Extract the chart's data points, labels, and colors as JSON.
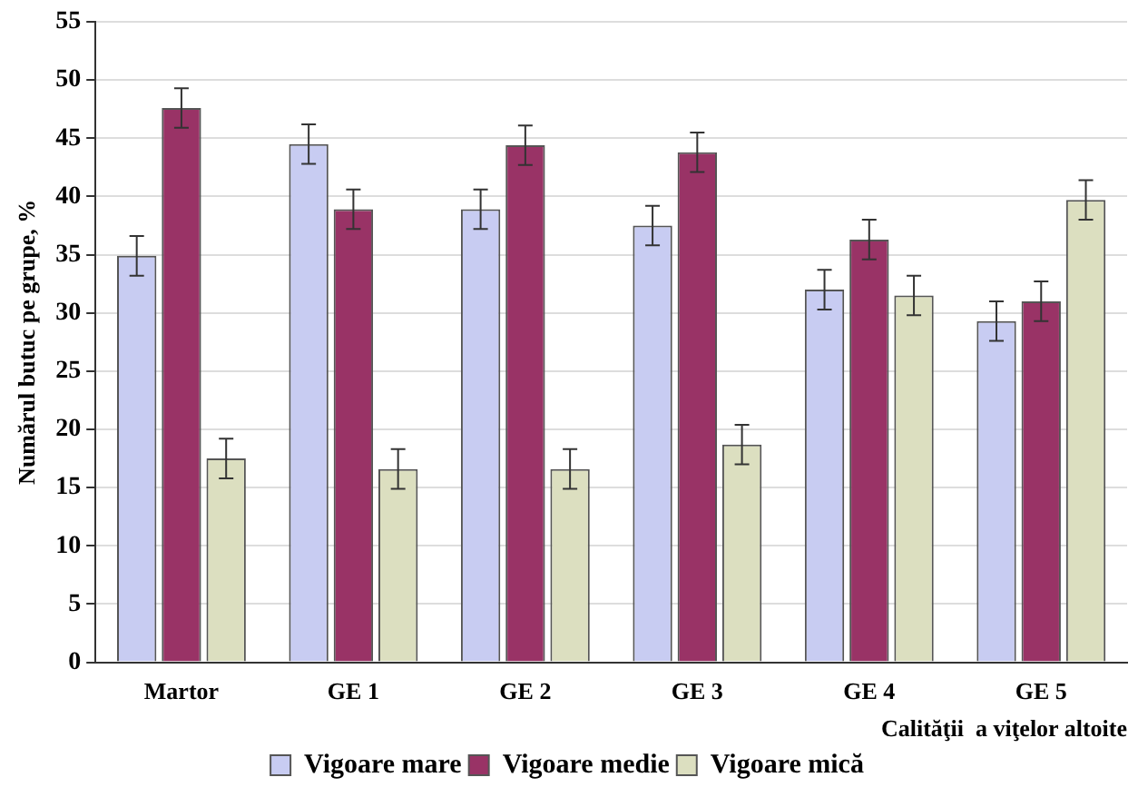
{
  "chart_data": {
    "type": "bar",
    "xlabel": "Calităţii  a viţelor altoite",
    "ylabel": "Numărul butuc pe grupe, %",
    "categories": [
      "Martor",
      "GE 1",
      "GE 2",
      "GE 3",
      "GE 4",
      "GE 5"
    ],
    "series": [
      {
        "name": "Vigoare mare",
        "color": "#c8ccf2",
        "values": [
          34.9,
          44.5,
          38.9,
          37.5,
          32.0,
          29.3
        ],
        "errors": [
          1.7,
          1.7,
          1.7,
          1.7,
          1.7,
          1.7
        ]
      },
      {
        "name": "Vigoare medie",
        "color": "#993366",
        "values": [
          47.6,
          38.9,
          44.4,
          43.8,
          36.3,
          31.0
        ],
        "errors": [
          1.7,
          1.7,
          1.7,
          1.7,
          1.7,
          1.7
        ]
      },
      {
        "name": "Vigoare mică",
        "color": "#dcdfc0",
        "values": [
          17.5,
          16.6,
          16.6,
          18.7,
          31.5,
          39.7
        ],
        "errors": [
          1.7,
          1.7,
          1.7,
          1.7,
          1.7,
          1.7
        ]
      }
    ],
    "ylim": [
      0,
      55
    ],
    "yticks": [
      0,
      5,
      10,
      15,
      20,
      25,
      30,
      35,
      40,
      45,
      50,
      55
    ],
    "grid": "y",
    "legend": "bottom"
  }
}
